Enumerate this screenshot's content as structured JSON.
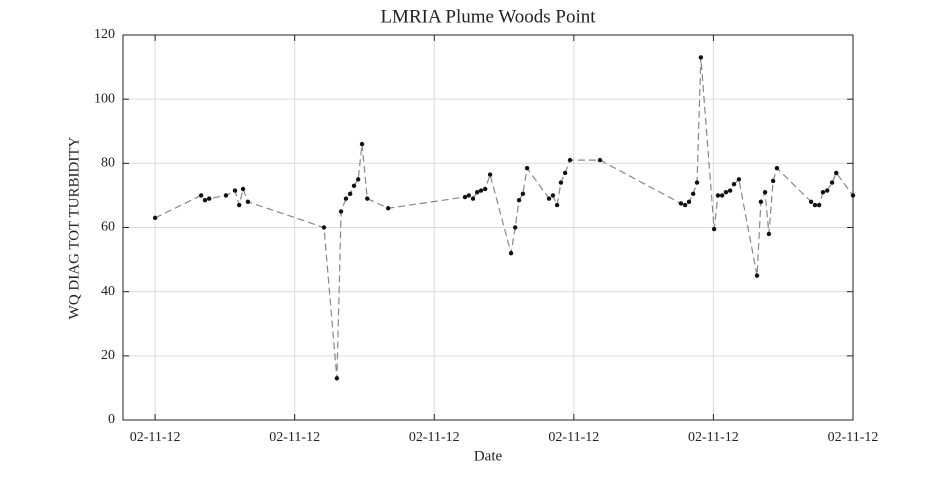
{
  "chart_data": {
    "type": "line",
    "title": "LMRIA Plume Woods Point",
    "x_label": "Date",
    "y_label": "WQ DIAG TOT TURBIDITY",
    "x": [
      0,
      1.32,
      1.43,
      1.55,
      2.03,
      2.29,
      2.41,
      2.52,
      2.66,
      4.84,
      5.21,
      5.33,
      5.47,
      5.59,
      5.7,
      5.82,
      5.93,
      6.08,
      6.68,
      8.88,
      8.99,
      9.11,
      9.23,
      9.34,
      9.46,
      9.6,
      10.2,
      10.32,
      10.43,
      10.54,
      10.66,
      11.29,
      11.4,
      11.52,
      11.63,
      11.75,
      11.89,
      12.75,
      15.07,
      15.19,
      15.3,
      15.42,
      15.53,
      15.64,
      16.02,
      16.13,
      16.25,
      16.36,
      16.48,
      16.59,
      16.73,
      17.25,
      17.36,
      17.48,
      17.59,
      17.71,
      17.82,
      18.8,
      18.91,
      19.03,
      19.14,
      19.26,
      19.4,
      19.52,
      20.0
    ],
    "series": [
      {
        "name": "WQ DIAG TOT TURBIDITY",
        "color": "#888888",
        "marker_color": "#111111",
        "values": [
          63,
          70,
          68.5,
          69,
          70,
          71.5,
          67,
          72,
          68,
          60,
          13,
          65,
          69,
          70.5,
          73,
          75,
          86,
          69,
          66,
          69.5,
          70,
          69,
          71,
          71.5,
          72,
          76.5,
          52,
          60,
          68.5,
          70.5,
          78.5,
          69,
          70,
          67,
          74,
          77,
          81,
          81,
          67.5,
          67,
          68,
          70.5,
          74,
          113,
          59.5,
          70,
          70,
          71,
          71.5,
          73.5,
          75,
          45,
          68,
          71,
          58,
          74.5,
          78.5,
          68,
          67,
          67,
          71,
          71.5,
          74,
          77,
          70
        ]
      }
    ],
    "xlim": [
      -0.92,
      20
    ],
    "ylim": [
      0,
      120
    ],
    "xticks": [
      {
        "value": 0,
        "label": "02-11-12"
      },
      {
        "value": 4,
        "label": "02-11-12"
      },
      {
        "value": 8,
        "label": "02-11-12"
      },
      {
        "value": 12,
        "label": "02-11-12"
      },
      {
        "value": 16,
        "label": "02-11-12"
      },
      {
        "value": 20,
        "label": "02-11-12"
      }
    ],
    "yticks": [
      0,
      20,
      40,
      60,
      80,
      100,
      120
    ],
    "grid": true
  }
}
